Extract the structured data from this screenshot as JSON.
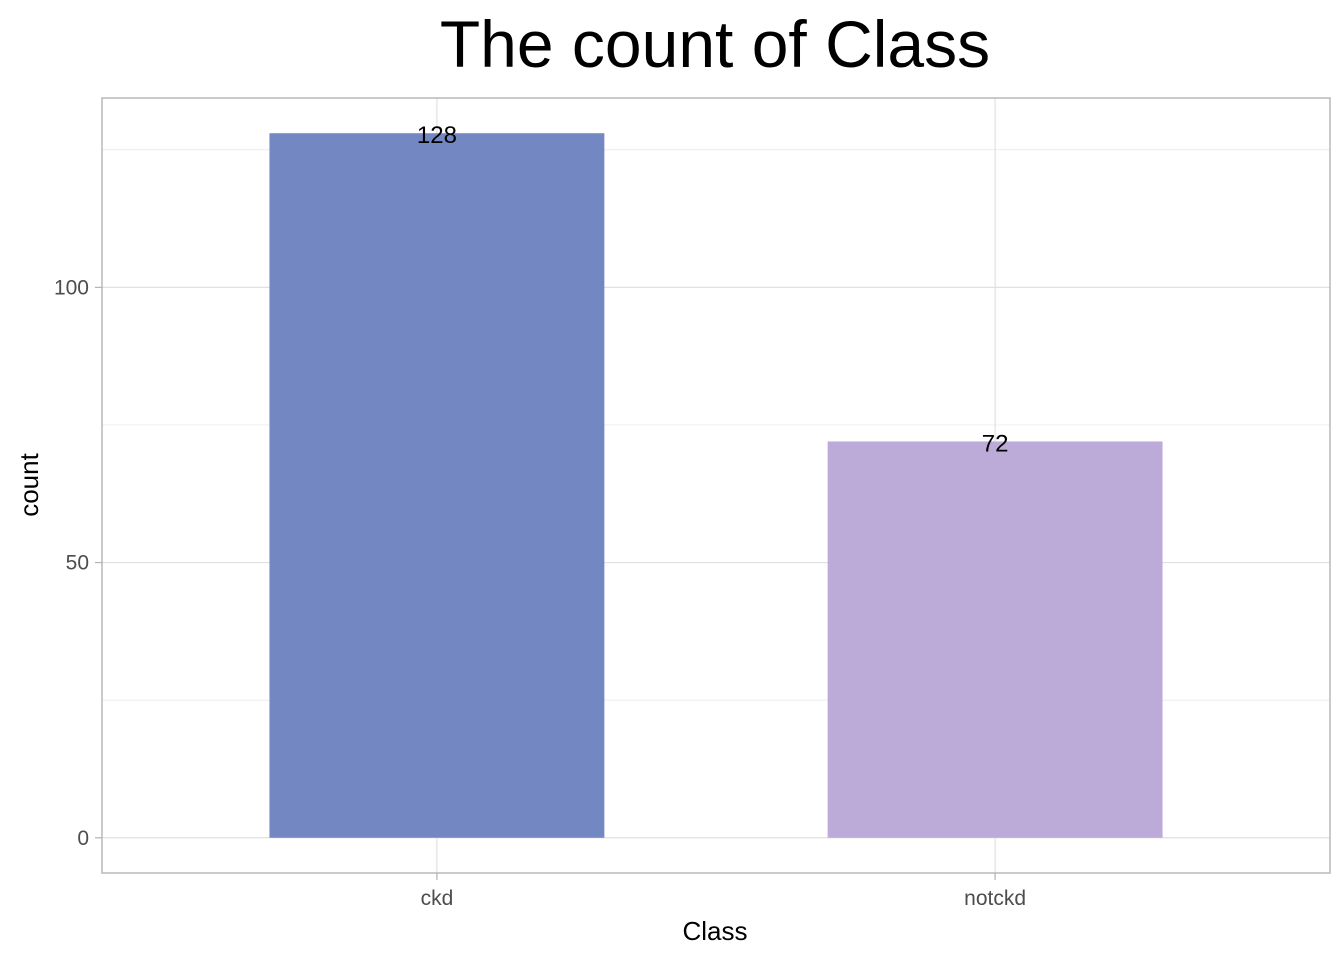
{
  "chart_data": {
    "type": "bar",
    "title": "The count of Class",
    "xlabel": "Class",
    "ylabel": "count",
    "categories": [
      "ckd",
      "notckd"
    ],
    "values": [
      128,
      72
    ],
    "data_labels": [
      "128",
      "72"
    ],
    "colors": [
      "#7387c2",
      "#bcaad9"
    ],
    "yticks": [
      0,
      50,
      100
    ],
    "ytick_labels": [
      "0",
      "50",
      "100"
    ],
    "ylim": [
      -6.4,
      134.4
    ],
    "grid": true,
    "legend": "none"
  }
}
